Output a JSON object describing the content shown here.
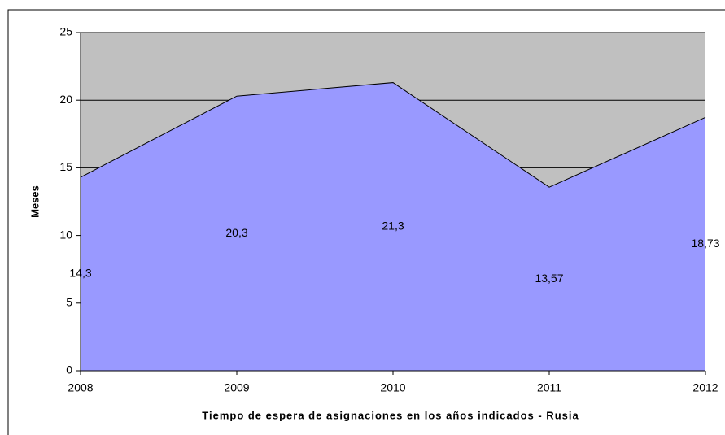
{
  "chart_data": {
    "type": "area",
    "x": [
      2008,
      2009,
      2010,
      2011,
      2012
    ],
    "xlim": [
      2008,
      2012
    ],
    "xticks": [
      2008,
      2009,
      2010,
      2011,
      2012
    ],
    "series": [
      {
        "color": "#9999ff",
        "values": [
          14.3,
          20.3,
          21.3,
          13.57,
          18.73
        ],
        "value_labels": [
          "14,3",
          "20,3",
          "21,3",
          "13,57",
          "18,73"
        ]
      }
    ],
    "ylim": [
      0,
      25
    ],
    "yticks": [
      0,
      5,
      10,
      15,
      20,
      25
    ],
    "ylabel": "Meses",
    "xlabel": "Tiempo de espera de asignaciones en los años indicados - Rusia",
    "grid": true,
    "background": "#c0c0c0"
  }
}
